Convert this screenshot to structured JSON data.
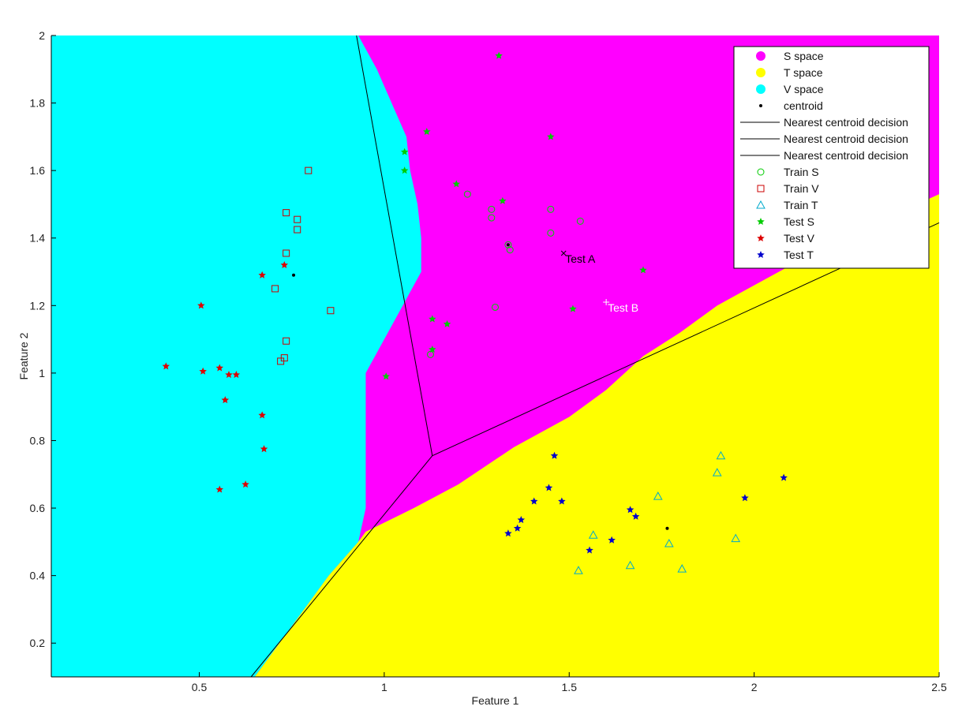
{
  "chart_data": {
    "type": "scatter",
    "title": "",
    "xlabel": "Feature 1",
    "ylabel": "Feature 2",
    "xlim": [
      0.1,
      2.5
    ],
    "ylim": [
      0.1,
      2.0
    ],
    "xticks": [
      "0.5",
      "1",
      "1.5",
      "2",
      "2.5"
    ],
    "xtick_values": [
      0.5,
      1,
      1.5,
      2,
      2.5
    ],
    "yticks": [
      "0.2",
      "0.4",
      "0.6",
      "0.8",
      "1",
      "1.2",
      "1.4",
      "1.6",
      "1.8",
      "2"
    ],
    "ytick_values": [
      0.2,
      0.4,
      0.6,
      0.8,
      1.0,
      1.2,
      1.4,
      1.6,
      1.8,
      2.0
    ],
    "grid": false,
    "legend_position": "top-right",
    "regions": [
      {
        "name": "S space",
        "color": "#ff00ff"
      },
      {
        "name": "T space",
        "color": "#ffff00"
      },
      {
        "name": "V space",
        "color": "#00ffff"
      }
    ],
    "region_boundaries": {
      "v_edge": [
        [
          0.93,
          2.0
        ],
        [
          0.98,
          1.9
        ],
        [
          1.02,
          1.8
        ],
        [
          1.06,
          1.7
        ],
        [
          1.07,
          1.6
        ],
        [
          1.09,
          1.5
        ],
        [
          1.1,
          1.4
        ],
        [
          1.1,
          1.3
        ],
        [
          1.05,
          1.2
        ],
        [
          1.0,
          1.1
        ],
        [
          0.95,
          1.0
        ],
        [
          0.95,
          0.8
        ],
        [
          0.95,
          0.6
        ],
        [
          0.93,
          0.5
        ],
        [
          0.85,
          0.4
        ],
        [
          0.75,
          0.25
        ],
        [
          0.65,
          0.1
        ]
      ],
      "t_edge": [
        [
          0.95,
          0.53
        ],
        [
          1.08,
          0.6
        ],
        [
          1.2,
          0.67
        ],
        [
          1.35,
          0.78
        ],
        [
          1.5,
          0.87
        ],
        [
          1.6,
          0.95
        ],
        [
          1.7,
          1.05
        ],
        [
          1.8,
          1.12
        ],
        [
          1.9,
          1.2
        ],
        [
          2.0,
          1.26
        ],
        [
          2.1,
          1.32
        ],
        [
          2.2,
          1.38
        ],
        [
          2.3,
          1.42
        ],
        [
          2.4,
          1.48
        ],
        [
          2.5,
          1.53
        ]
      ]
    },
    "decision_lines": [
      {
        "x": [
          0.925,
          1.13
        ],
        "y": [
          2.0,
          0.755
        ]
      },
      {
        "x": [
          1.13,
          2.5
        ],
        "y": [
          0.755,
          1.445
        ]
      },
      {
        "x": [
          1.13,
          0.64
        ],
        "y": [
          0.755,
          0.1
        ]
      }
    ],
    "series": [
      {
        "name": "centroid",
        "marker": "dot",
        "color": "#000000",
        "points": [
          [
            1.335,
            1.38
          ],
          [
            0.755,
            1.29
          ],
          [
            1.765,
            0.54
          ]
        ]
      },
      {
        "name": "Train S",
        "marker": "circle",
        "color": "#00cc00",
        "points": [
          [
            1.225,
            1.53
          ],
          [
            1.29,
            1.485
          ],
          [
            1.29,
            1.46
          ],
          [
            1.45,
            1.485
          ],
          [
            1.53,
            1.45
          ],
          [
            1.45,
            1.415
          ],
          [
            1.335,
            1.38
          ],
          [
            1.34,
            1.365
          ],
          [
            1.3,
            1.195
          ],
          [
            1.125,
            1.055
          ]
        ]
      },
      {
        "name": "Train V",
        "marker": "square",
        "color": "#cc0000",
        "points": [
          [
            0.795,
            1.6
          ],
          [
            0.735,
            1.475
          ],
          [
            0.765,
            1.455
          ],
          [
            0.765,
            1.425
          ],
          [
            0.735,
            1.355
          ],
          [
            0.705,
            1.25
          ],
          [
            0.855,
            1.185
          ],
          [
            0.735,
            1.095
          ],
          [
            0.73,
            1.045
          ],
          [
            0.72,
            1.035
          ]
        ]
      },
      {
        "name": "Train T",
        "marker": "triangle",
        "color": "#00aacc",
        "points": [
          [
            1.91,
            0.755
          ],
          [
            1.9,
            0.705
          ],
          [
            1.74,
            0.635
          ],
          [
            1.565,
            0.52
          ],
          [
            1.95,
            0.51
          ],
          [
            1.77,
            0.495
          ],
          [
            1.525,
            0.415
          ],
          [
            1.665,
            0.43
          ],
          [
            1.805,
            0.42
          ]
        ]
      },
      {
        "name": "Test S",
        "marker": "star",
        "color": "#00cc00",
        "points": [
          [
            1.31,
            1.94
          ],
          [
            1.115,
            1.715
          ],
          [
            1.45,
            1.7
          ],
          [
            1.055,
            1.655
          ],
          [
            1.055,
            1.6
          ],
          [
            1.195,
            1.56
          ],
          [
            1.32,
            1.51
          ],
          [
            1.7,
            1.305
          ],
          [
            1.51,
            1.19
          ],
          [
            1.13,
            1.16
          ],
          [
            1.17,
            1.145
          ],
          [
            1.13,
            1.07
          ],
          [
            1.005,
            0.99
          ]
        ]
      },
      {
        "name": "Test V",
        "marker": "star",
        "color": "#dd0000",
        "points": [
          [
            0.73,
            1.32
          ],
          [
            0.67,
            1.29
          ],
          [
            0.505,
            1.2
          ],
          [
            0.41,
            1.02
          ],
          [
            0.51,
            1.005
          ],
          [
            0.555,
            1.015
          ],
          [
            0.58,
            0.995
          ],
          [
            0.6,
            0.995
          ],
          [
            0.57,
            0.92
          ],
          [
            0.67,
            0.875
          ],
          [
            0.675,
            0.775
          ],
          [
            0.625,
            0.67
          ],
          [
            0.555,
            0.655
          ]
        ]
      },
      {
        "name": "Test T",
        "marker": "star",
        "color": "#0000cc",
        "points": [
          [
            1.46,
            0.755
          ],
          [
            2.08,
            0.69
          ],
          [
            1.445,
            0.66
          ],
          [
            1.975,
            0.63
          ],
          [
            1.405,
            0.62
          ],
          [
            1.48,
            0.62
          ],
          [
            1.665,
            0.595
          ],
          [
            1.68,
            0.575
          ],
          [
            1.37,
            0.565
          ],
          [
            1.36,
            0.54
          ],
          [
            1.335,
            0.525
          ],
          [
            1.615,
            0.505
          ],
          [
            1.555,
            0.475
          ]
        ]
      }
    ],
    "annotations": [
      {
        "text": "Test A",
        "x": 1.485,
        "y": 1.355,
        "color": "#000000",
        "marker": "x"
      },
      {
        "text": "Test B",
        "x": 1.6,
        "y": 1.21,
        "color": "#ffffff",
        "marker": "plus"
      }
    ],
    "legend": [
      {
        "label": "S space",
        "type": "dot",
        "color": "#ff00ff"
      },
      {
        "label": "T space",
        "type": "dot",
        "color": "#ffff00"
      },
      {
        "label": "V space",
        "type": "dot",
        "color": "#00ffff"
      },
      {
        "label": "centroid",
        "type": "smalldot",
        "color": "#000000"
      },
      {
        "label": "Nearest centroid decision",
        "type": "line",
        "color": "#000000"
      },
      {
        "label": "Nearest centroid decision",
        "type": "line",
        "color": "#000000"
      },
      {
        "label": "Nearest centroid decision",
        "type": "line",
        "color": "#000000"
      },
      {
        "label": "Train S",
        "type": "circle",
        "color": "#00cc00"
      },
      {
        "label": "Train V",
        "type": "square",
        "color": "#cc0000"
      },
      {
        "label": "Train T",
        "type": "triangle",
        "color": "#00aacc"
      },
      {
        "label": "Test S",
        "type": "star",
        "color": "#00cc00"
      },
      {
        "label": "Test V",
        "type": "star",
        "color": "#dd0000"
      },
      {
        "label": "Test T",
        "type": "star",
        "color": "#0000cc"
      }
    ]
  }
}
